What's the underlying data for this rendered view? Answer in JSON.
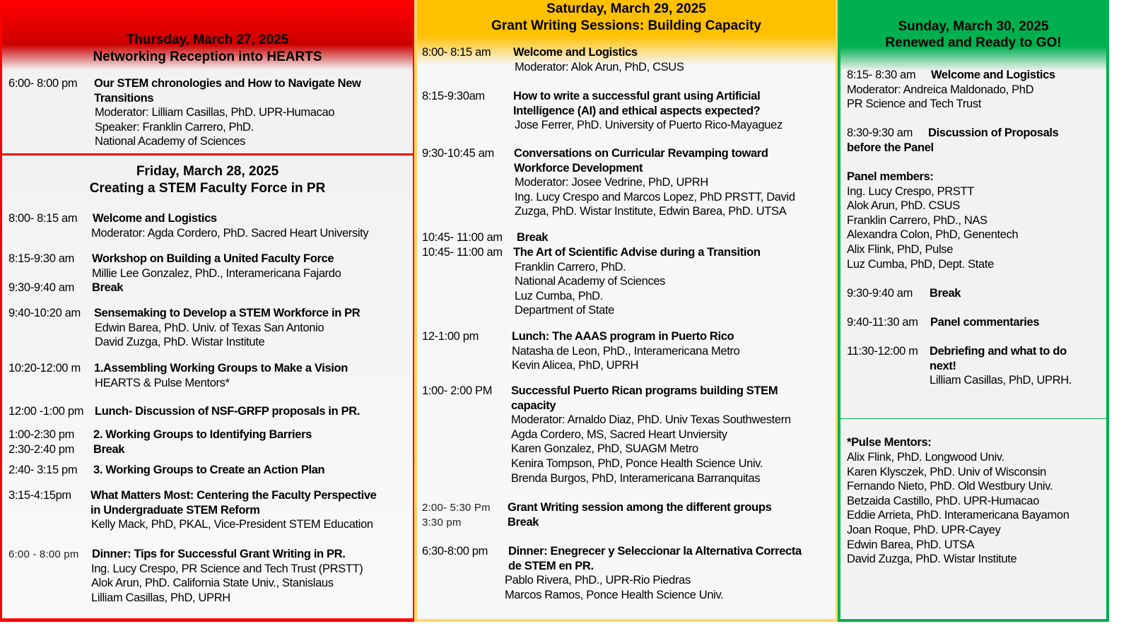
{
  "colors": {
    "thursday": "#ff0000",
    "friday": "#ff0000",
    "saturday": "#ffc000",
    "sunday": "#00b050"
  },
  "thursday": {
    "header": [
      "Thursday, March 27, 2025",
      "Networking Reception into HEARTS"
    ],
    "entries": [
      {
        "time": "6:00- 8:00 pm",
        "title": [
          "Our STEM chronologies and How to Navigate New",
          "Transitions"
        ],
        "details": [
          "Moderator: Lilliam Casillas, PhD. UPR-Humacao",
          "Speaker: Franklin Carrero, PhD.",
          "National Academy of Sciences"
        ]
      }
    ]
  },
  "friday": {
    "header": [
      "Friday, March 28, 2025",
      "Creating a STEM Faculty Force in PR"
    ],
    "entries": [
      {
        "time": "8:00- 8:15 am",
        "title": [
          "Welcome and Logistics"
        ],
        "details": [
          "Moderator: Agda Cordero, PhD. Sacred Heart University"
        ]
      },
      {
        "time": "8:15-9:30 am",
        "title": [
          "Workshop on Building a United Faculty Force"
        ],
        "details": [
          "Millie Lee Gonzalez, PhD., Interamericana Fajardo"
        ]
      },
      {
        "time": "9:30-9:40 am",
        "title": [
          "Break"
        ],
        "details": []
      },
      {
        "time": "9:40-10:20 am",
        "title": [
          "Sensemaking to Develop a STEM Workforce in PR"
        ],
        "details": [
          "Edwin Barea, PhD. Univ. of Texas San Antonio",
          "David Zuzga, PhD. Wistar Institute"
        ]
      },
      {
        "time": "10:20-12:00 m",
        "title": [
          "1.Assembling Working Groups to Make a Vision"
        ],
        "details": [
          "HEARTS & Pulse Mentors*"
        ]
      },
      {
        "time": "12:00 -1:00 pm",
        "title": [
          "Lunch- Discussion of NSF-GRFP proposals in PR."
        ],
        "details": []
      },
      {
        "time": "1:00-2:30 pm",
        "title": [
          "2. Working Groups to Identifying Barriers"
        ],
        "details": []
      },
      {
        "time": "2:30-2:40 pm",
        "title": [
          "Break"
        ],
        "details": []
      },
      {
        "time": "2:40- 3:15  pm",
        "title": [
          "3. Working Groups to Create an Action Plan"
        ],
        "details": []
      },
      {
        "time": "3:15-4:15pm",
        "title": [
          "What Matters Most: Centering the Faculty Perspective",
          "in Undergraduate STEM Reform"
        ],
        "details": [
          "Kelly Mack, PhD, PKAL, Vice-President STEM Education"
        ]
      },
      {
        "time": "6:00 - 8:00 pm",
        "title": [
          "Dinner: Tips for Successful Grant Writing in PR."
        ],
        "details": [
          "Ing. Lucy Crespo, PR Science and Tech Trust (PRSTT)",
          "Alok Arun, PhD. California State Univ., Stanislaus",
          "Lilliam Casillas, PhD, UPRH"
        ]
      }
    ]
  },
  "saturday": {
    "header": [
      "Saturday, March 29, 2025",
      "Grant Writing Sessions: Building Capacity"
    ],
    "entries": [
      {
        "time": "8:00- 8:15 am",
        "title": [
          "Welcome and Logistics"
        ],
        "details": [
          "Moderator: Alok Arun, PhD, CSUS"
        ]
      },
      {
        "time": "8:15-9:30am",
        "title": [
          "How to write a successful grant using Artificial",
          "Intelligence (AI) and ethical aspects expected?"
        ],
        "details": [
          "Jose Ferrer, PhD. University of Puerto Rico-Mayaguez"
        ]
      },
      {
        "time": "9:30-10:45 am",
        "title": [
          "Conversations on Curricular Revamping toward",
          "Workforce Development"
        ],
        "details": [
          "Moderator: Josee Vedrine, PhD, UPRH",
          "Ing. Lucy Crespo and Marcos Lopez, PhD PRSTT, David",
          "Zuzga, PhD. Wistar Institute, Edwin Barea, PhD. UTSA"
        ]
      },
      {
        "time": "10:45- 11:00 am",
        "title": [
          "Break"
        ],
        "details": []
      },
      {
        "time": "10:45- 11:00 am",
        "title": [
          "The Art of Scientific Advise during a Transition"
        ],
        "details": [
          "Franklin Carrero, PhD.",
          "National Academy of Sciences",
          "Luz Cumba, PhD.",
          "Department of State"
        ]
      },
      {
        "time": "12-1:00 pm",
        "title": [
          "Lunch: The AAAS program in Puerto Rico"
        ],
        "details": [
          "Natasha de Leon, PhD., Interamericana Metro",
          "Kevin Alicea, PhD, UPRH"
        ]
      },
      {
        "time": "1:00- 2:00 PM",
        "title": [
          "Successful Puerto Rican programs building STEM",
          "capacity"
        ],
        "details": [
          "Moderator: Arnaldo Diaz, PhD. Univ Texas Southwestern",
          "Agda Cordero, MS, Sacred Heart Unviersity",
          "Karen Gonzalez, PhD, SUAGM Metro",
          "Kenira Tompson, PhD, Ponce Health Science Univ.",
          "Brenda Burgos, PhD, Interamericana Barranquitas"
        ]
      },
      {
        "time": "2:00- 5:30  Pm",
        "title": [
          "Grant Writing session among the different groups"
        ],
        "details": []
      },
      {
        "time": "3:30 pm",
        "title": [
          "Break"
        ],
        "details": []
      },
      {
        "time": "6:30-8:00 pm",
        "title": [
          "Dinner: Enegrecer y Seleccionar la Alternativa Correcta",
          " de STEM en PR."
        ],
        "details": [
          "Pablo Rivera, PhD., UPR-Rio Piedras",
          "Marcos Ramos, Ponce Health Science Univ."
        ]
      }
    ]
  },
  "sunday": {
    "header": [
      "Sunday, March 30, 2025",
      "Renewed and Ready to GO!"
    ],
    "entries": [
      {
        "time": "8:15- 8:30 am",
        "title": [
          "Welcome and Logistics"
        ],
        "details": [
          "Moderator: Andreica Maldonado, PhD",
          "PR Science and Tech Trust"
        ]
      },
      {
        "time": "8:30-9:30 am",
        "title": [
          "Discussion of Proposals",
          "before the Panel"
        ],
        "details": []
      },
      {
        "time": "",
        "title": [
          "Panel members:"
        ],
        "details": [
          "Ing. Lucy Crespo, PRSTT",
          "Alok Arun, PhD. CSUS",
          "Franklin Carrero, PhD., NAS",
          "Alexandra Colon, PhD, Genentech",
          "Alix Flink, PhD, Pulse",
          "Luz Cumba, PhD, Dept. State"
        ]
      },
      {
        "time": "9:30-9:40 am",
        "title": [
          "Break"
        ],
        "details": []
      },
      {
        "time": "9:40-11:30 am",
        "title": [
          "Panel commentaries"
        ],
        "details": []
      },
      {
        "time": "11:30-12:00 m",
        "title": [
          "Debriefing and what to do",
          "next!"
        ],
        "details": [
          "Lilliam Casillas, PhD, UPRH."
        ]
      }
    ]
  },
  "pulse": {
    "title": "*Pulse Mentors:",
    "members": [
      "Alix Flink, PhD. Longwood Univ.",
      "Karen Klysczek, PhD. Univ of Wisconsin",
      "Fernando Nieto, PhD. Old Westbury Univ.",
      "Betzaida Castillo, PhD. UPR-Humacao",
      "Eddie Arrieta, PhD. Interamericana Bayamon",
      "Joan Roque, PhD. UPR-Cayey",
      "Edwin Barea, PhD. UTSA",
      "David Zuzga, PhD. Wistar Institute"
    ]
  }
}
